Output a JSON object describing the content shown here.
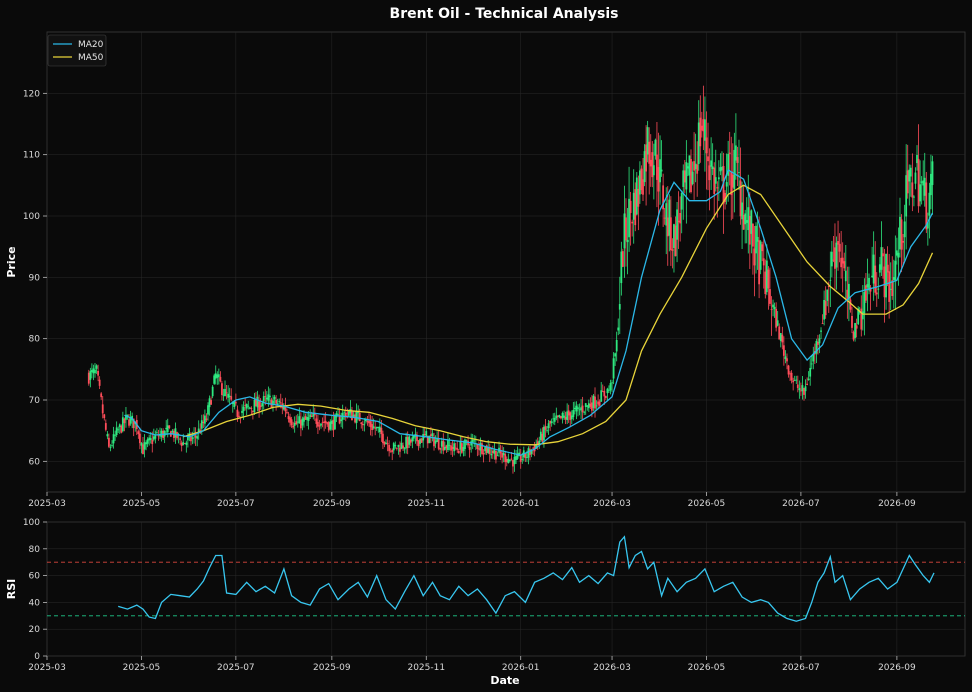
{
  "title": "Brent Oil - Technical Analysis",
  "colors": {
    "background": "#0a0a0a",
    "panel": "#0a0a0a",
    "grid": "#2a2a2a",
    "up": "#2ee87f",
    "down": "#ff4d5a",
    "ma20": "#2bb8e8",
    "ma50": "#e8d43a",
    "rsi": "#38c7f0",
    "overbought": "#d9473f",
    "oversold": "#1fc98a"
  },
  "chart_data": [
    {
      "type": "candlestick",
      "ylabel": "Price",
      "ylim": [
        55,
        130
      ],
      "yticks": [
        60,
        70,
        80,
        90,
        100,
        110,
        120
      ],
      "xlim": [
        "2025-03-01",
        "2026-10-15"
      ],
      "xticks": [
        "2025-03",
        "2025-05",
        "2025-07",
        "2025-09",
        "2025-11",
        "2026-01",
        "2026-03",
        "2026-05",
        "2026-07",
        "2026-09"
      ],
      "grid": true,
      "legend": {
        "position": "top-left",
        "entries": [
          "MA20",
          "MA50"
        ]
      },
      "price_path": [
        [
          "2025-03-28",
          74
        ],
        [
          "2025-04-02",
          74.5
        ],
        [
          "2025-04-06",
          68
        ],
        [
          "2025-04-10",
          62
        ],
        [
          "2025-04-16",
          65
        ],
        [
          "2025-04-22",
          67
        ],
        [
          "2025-04-28",
          66
        ],
        [
          "2025-05-02",
          62
        ],
        [
          "2025-05-10",
          64
        ],
        [
          "2025-05-20",
          65
        ],
        [
          "2025-05-28",
          63
        ],
        [
          "2025-06-05",
          64
        ],
        [
          "2025-06-12",
          67
        ],
        [
          "2025-06-18",
          74
        ],
        [
          "2025-06-24",
          71
        ],
        [
          "2025-07-02",
          68
        ],
        [
          "2025-07-12",
          69
        ],
        [
          "2025-07-22",
          70
        ],
        [
          "2025-08-01",
          69
        ],
        [
          "2025-08-08",
          66
        ],
        [
          "2025-08-20",
          67
        ],
        [
          "2025-09-01",
          66
        ],
        [
          "2025-09-10",
          68
        ],
        [
          "2025-09-20",
          67
        ],
        [
          "2025-10-01",
          65
        ],
        [
          "2025-10-10",
          62
        ],
        [
          "2025-10-20",
          63
        ],
        [
          "2025-11-01",
          64
        ],
        [
          "2025-11-10",
          63
        ],
        [
          "2025-11-20",
          62
        ],
        [
          "2025-12-01",
          63
        ],
        [
          "2025-12-10",
          62
        ],
        [
          "2025-12-20",
          61
        ],
        [
          "2025-12-28",
          60
        ],
        [
          "2026-01-05",
          61
        ],
        [
          "2026-01-12",
          63
        ],
        [
          "2026-01-20",
          66
        ],
        [
          "2026-01-28",
          67
        ],
        [
          "2026-02-05",
          68
        ],
        [
          "2026-02-12",
          69
        ],
        [
          "2026-02-20",
          70
        ],
        [
          "2026-02-28",
          72
        ],
        [
          "2026-03-04",
          79
        ],
        [
          "2026-03-08",
          95
        ],
        [
          "2026-03-12",
          100
        ],
        [
          "2026-03-18",
          104
        ],
        [
          "2026-03-24",
          112
        ],
        [
          "2026-03-30",
          109
        ],
        [
          "2026-04-05",
          100
        ],
        [
          "2026-04-10",
          96
        ],
        [
          "2026-04-16",
          103
        ],
        [
          "2026-04-22",
          107
        ],
        [
          "2026-04-28",
          115
        ],
        [
          "2026-05-03",
          109
        ],
        [
          "2026-05-08",
          104
        ],
        [
          "2026-05-14",
          106
        ],
        [
          "2026-05-20",
          108
        ],
        [
          "2026-05-26",
          100
        ],
        [
          "2026-06-01",
          95
        ],
        [
          "2026-06-08",
          90
        ],
        [
          "2026-06-14",
          84
        ],
        [
          "2026-06-20",
          78
        ],
        [
          "2026-06-26",
          73
        ],
        [
          "2026-07-03",
          71
        ],
        [
          "2026-07-08",
          76
        ],
        [
          "2026-07-14",
          82
        ],
        [
          "2026-07-20",
          91
        ],
        [
          "2026-07-25",
          97
        ],
        [
          "2026-07-30",
          88
        ],
        [
          "2026-08-04",
          81
        ],
        [
          "2026-08-10",
          86
        ],
        [
          "2026-08-16",
          90
        ],
        [
          "2026-08-22",
          92
        ],
        [
          "2026-08-28",
          88
        ],
        [
          "2026-09-03",
          96
        ],
        [
          "2026-09-08",
          104
        ],
        [
          "2026-09-14",
          107
        ],
        [
          "2026-09-20",
          102
        ],
        [
          "2026-09-24",
          105
        ]
      ],
      "ma20": [
        [
          "2025-04-20",
          67.5
        ],
        [
          "2025-04-25",
          67
        ],
        [
          "2025-05-01",
          65
        ],
        [
          "2025-05-10",
          64.3
        ],
        [
          "2025-05-20",
          64.5
        ],
        [
          "2025-06-01",
          64
        ],
        [
          "2025-06-10",
          65
        ],
        [
          "2025-06-20",
          68
        ],
        [
          "2025-07-01",
          70
        ],
        [
          "2025-07-10",
          70.5
        ],
        [
          "2025-07-20",
          69.5
        ],
        [
          "2025-08-01",
          69
        ],
        [
          "2025-08-15",
          68
        ],
        [
          "2025-09-01",
          67.5
        ],
        [
          "2025-09-15",
          67.2
        ],
        [
          "2025-10-01",
          66.5
        ],
        [
          "2025-10-15",
          64.5
        ],
        [
          "2025-11-01",
          64
        ],
        [
          "2025-11-15",
          63.5
        ],
        [
          "2025-12-01",
          63
        ],
        [
          "2025-12-15",
          62
        ],
        [
          "2026-01-01",
          61
        ],
        [
          "2026-01-10",
          62
        ],
        [
          "2026-01-20",
          64
        ],
        [
          "2026-02-01",
          65.5
        ],
        [
          "2026-02-15",
          67.5
        ],
        [
          "2026-03-01",
          70.5
        ],
        [
          "2026-03-10",
          78
        ],
        [
          "2026-03-20",
          90
        ],
        [
          "2026-04-01",
          101
        ],
        [
          "2026-04-10",
          105.5
        ],
        [
          "2026-04-20",
          102.5
        ],
        [
          "2026-05-01",
          102.5
        ],
        [
          "2026-05-10",
          104
        ],
        [
          "2026-05-15",
          107.5
        ],
        [
          "2026-05-25",
          106
        ],
        [
          "2026-06-05",
          98
        ],
        [
          "2026-06-15",
          90
        ],
        [
          "2026-06-25",
          80
        ],
        [
          "2026-07-05",
          76.5
        ],
        [
          "2026-07-15",
          79
        ],
        [
          "2026-07-25",
          85
        ],
        [
          "2026-08-05",
          87.5
        ],
        [
          "2026-08-20",
          88.5
        ],
        [
          "2026-09-01",
          89.5
        ],
        [
          "2026-09-10",
          95
        ],
        [
          "2026-09-20",
          98.5
        ],
        [
          "2026-09-24",
          100.5
        ]
      ],
      "ma50": [
        [
          "2025-05-28",
          64
        ],
        [
          "2025-06-10",
          65
        ],
        [
          "2025-06-25",
          66.5
        ],
        [
          "2025-07-10",
          67.5
        ],
        [
          "2025-07-25",
          68.8
        ],
        [
          "2025-08-10",
          69.3
        ],
        [
          "2025-08-25",
          69
        ],
        [
          "2025-09-10",
          68.3
        ],
        [
          "2025-09-25",
          68
        ],
        [
          "2025-10-10",
          67
        ],
        [
          "2025-10-25",
          65.8
        ],
        [
          "2025-11-10",
          65
        ],
        [
          "2025-11-25",
          64
        ],
        [
          "2025-12-10",
          63.2
        ],
        [
          "2025-12-25",
          62.8
        ],
        [
          "2026-01-10",
          62.7
        ],
        [
          "2026-01-25",
          63.2
        ],
        [
          "2026-02-10",
          64.5
        ],
        [
          "2026-02-25",
          66.5
        ],
        [
          "2026-03-10",
          70
        ],
        [
          "2026-03-20",
          78
        ],
        [
          "2026-04-01",
          84
        ],
        [
          "2026-04-15",
          90
        ],
        [
          "2026-05-01",
          98
        ],
        [
          "2026-05-15",
          103.5
        ],
        [
          "2026-05-25",
          105
        ],
        [
          "2026-06-05",
          103.5
        ],
        [
          "2026-06-20",
          98
        ],
        [
          "2026-07-05",
          92.5
        ],
        [
          "2026-07-20",
          88.5
        ],
        [
          "2026-08-01",
          86
        ],
        [
          "2026-08-10",
          84
        ],
        [
          "2026-08-25",
          84
        ],
        [
          "2026-09-05",
          85.5
        ],
        [
          "2026-09-15",
          89
        ],
        [
          "2026-09-24",
          94
        ]
      ]
    },
    {
      "type": "line",
      "xlabel": "Date",
      "ylabel": "RSI",
      "ylim": [
        0,
        100
      ],
      "yticks": [
        0,
        20,
        40,
        60,
        80,
        100
      ],
      "reference_lines": [
        70,
        30
      ],
      "series": [
        {
          "values": [
            [
              "2025-04-16",
              37
            ],
            [
              "2025-04-22",
              35
            ],
            [
              "2025-04-28",
              38
            ],
            [
              "2025-05-02",
              35
            ],
            [
              "2025-05-06",
              29
            ],
            [
              "2025-05-10",
              28
            ],
            [
              "2025-05-14",
              40
            ],
            [
              "2025-05-20",
              46
            ],
            [
              "2025-05-26",
              45
            ],
            [
              "2025-06-01",
              44
            ],
            [
              "2025-06-06",
              50
            ],
            [
              "2025-06-10",
              56
            ],
            [
              "2025-06-14",
              66
            ],
            [
              "2025-06-18",
              75
            ],
            [
              "2025-06-22",
              75
            ],
            [
              "2025-06-25",
              47
            ],
            [
              "2025-07-01",
              46
            ],
            [
              "2025-07-08",
              55
            ],
            [
              "2025-07-14",
              48
            ],
            [
              "2025-07-20",
              52
            ],
            [
              "2025-07-26",
              47
            ],
            [
              "2025-08-01",
              65
            ],
            [
              "2025-08-06",
              45
            ],
            [
              "2025-08-12",
              40
            ],
            [
              "2025-08-18",
              38
            ],
            [
              "2025-08-24",
              50
            ],
            [
              "2025-08-30",
              54
            ],
            [
              "2025-09-05",
              42
            ],
            [
              "2025-09-12",
              50
            ],
            [
              "2025-09-18",
              55
            ],
            [
              "2025-09-24",
              44
            ],
            [
              "2025-09-30",
              60
            ],
            [
              "2025-10-06",
              42
            ],
            [
              "2025-10-12",
              35
            ],
            [
              "2025-10-18",
              48
            ],
            [
              "2025-10-24",
              60
            ],
            [
              "2025-10-30",
              45
            ],
            [
              "2025-11-05",
              55
            ],
            [
              "2025-11-10",
              45
            ],
            [
              "2025-11-16",
              42
            ],
            [
              "2025-11-22",
              52
            ],
            [
              "2025-11-28",
              45
            ],
            [
              "2025-12-04",
              50
            ],
            [
              "2025-12-10",
              42
            ],
            [
              "2025-12-16",
              32
            ],
            [
              "2025-12-22",
              45
            ],
            [
              "2025-12-28",
              48
            ],
            [
              "2026-01-04",
              40
            ],
            [
              "2026-01-10",
              55
            ],
            [
              "2026-01-16",
              58
            ],
            [
              "2026-01-22",
              62
            ],
            [
              "2026-01-28",
              57
            ],
            [
              "2026-02-03",
              66
            ],
            [
              "2026-02-08",
              55
            ],
            [
              "2026-02-14",
              60
            ],
            [
              "2026-02-20",
              54
            ],
            [
              "2026-02-26",
              62
            ],
            [
              "2026-03-02",
              60
            ],
            [
              "2026-03-06",
              85
            ],
            [
              "2026-03-09",
              89
            ],
            [
              "2026-03-12",
              66
            ],
            [
              "2026-03-16",
              75
            ],
            [
              "2026-03-20",
              78
            ],
            [
              "2026-03-24",
              65
            ],
            [
              "2026-03-28",
              70
            ],
            [
              "2026-04-02",
              45
            ],
            [
              "2026-04-06",
              58
            ],
            [
              "2026-04-12",
              48
            ],
            [
              "2026-04-18",
              55
            ],
            [
              "2026-04-24",
              58
            ],
            [
              "2026-04-30",
              65
            ],
            [
              "2026-05-06",
              48
            ],
            [
              "2026-05-12",
              52
            ],
            [
              "2026-05-18",
              55
            ],
            [
              "2026-05-24",
              44
            ],
            [
              "2026-05-30",
              40
            ],
            [
              "2026-06-05",
              42
            ],
            [
              "2026-06-10",
              40
            ],
            [
              "2026-06-16",
              32
            ],
            [
              "2026-06-22",
              28
            ],
            [
              "2026-06-28",
              26
            ],
            [
              "2026-07-04",
              28
            ],
            [
              "2026-07-08",
              40
            ],
            [
              "2026-07-12",
              55
            ],
            [
              "2026-07-16",
              62
            ],
            [
              "2026-07-20",
              74
            ],
            [
              "2026-07-23",
              55
            ],
            [
              "2026-07-28",
              60
            ],
            [
              "2026-08-02",
              42
            ],
            [
              "2026-08-08",
              50
            ],
            [
              "2026-08-14",
              55
            ],
            [
              "2026-08-20",
              58
            ],
            [
              "2026-08-26",
              50
            ],
            [
              "2026-09-01",
              55
            ],
            [
              "2026-09-05",
              65
            ],
            [
              "2026-09-09",
              75
            ],
            [
              "2026-09-13",
              68
            ],
            [
              "2026-09-18",
              60
            ],
            [
              "2026-09-22",
              55
            ],
            [
              "2026-09-25",
              62
            ]
          ]
        }
      ]
    }
  ]
}
